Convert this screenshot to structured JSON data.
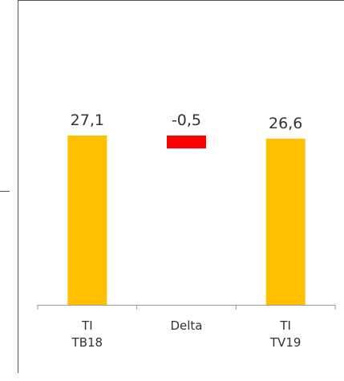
{
  "chart_data": {
    "type": "waterfall",
    "categories": [
      "TI\nTB18",
      "Delta",
      "TI\nTV19"
    ],
    "values": [
      27.1,
      -0.5,
      26.6
    ],
    "value_labels": [
      "27,1",
      "-0,5",
      "26,6"
    ],
    "colors": [
      "#ffc000",
      "#ff0000",
      "#ffc000"
    ]
  }
}
